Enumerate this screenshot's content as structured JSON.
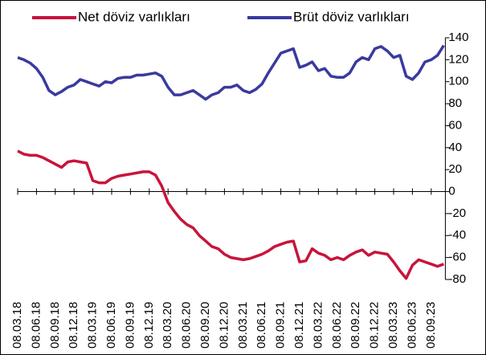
{
  "chart_data": {
    "type": "line",
    "categories": [
      "08.03.18",
      null,
      null,
      "08.06.18",
      null,
      null,
      "08.09.18",
      null,
      null,
      "08.12.18",
      null,
      null,
      "08.03.19",
      null,
      null,
      "08.06.19",
      null,
      null,
      "08.09.19",
      null,
      null,
      "08.12.19",
      null,
      null,
      "08.03.20",
      null,
      null,
      "08.06.20",
      null,
      null,
      "08.09.20",
      null,
      null,
      "08.12.20",
      null,
      null,
      "08.03.21",
      null,
      null,
      "08.06.21",
      null,
      null,
      "08.09.21",
      null,
      null,
      "08.12.21",
      null,
      null,
      "08.03.22",
      null,
      null,
      "08.06.22",
      null,
      null,
      "08.09.22",
      null,
      null,
      "08.12.22",
      null,
      null,
      "08.03.23",
      null,
      null,
      "08.06.23",
      null,
      null,
      "08.09.23",
      null,
      null
    ],
    "series": [
      {
        "name": "Net döviz varlıkları",
        "color": "#c8143c",
        "values": [
          37,
          34,
          33,
          33,
          31,
          28,
          25,
          22,
          27,
          28,
          27,
          26,
          10,
          8,
          8,
          12,
          14,
          15,
          16,
          17,
          18,
          18,
          15,
          5,
          -10,
          -18,
          -25,
          -30,
          -33,
          -40,
          -45,
          -50,
          -52,
          -57,
          -60,
          -61,
          -62,
          -61,
          -59,
          -57,
          -54,
          -50,
          -48,
          -46,
          -45,
          -64,
          -63,
          -52,
          -56,
          -58,
          -62,
          -60,
          -62,
          -58,
          -55,
          -53,
          -58,
          -55,
          -56,
          -57,
          -64,
          -72,
          -79,
          -67,
          -62,
          -64,
          -66,
          -68,
          -66
        ]
      },
      {
        "name": "Brüt döviz varlıkları",
        "color": "#3a3a9e",
        "values": [
          122,
          120,
          117,
          112,
          104,
          92,
          88,
          91,
          95,
          97,
          102,
          100,
          98,
          96,
          100,
          99,
          103,
          104,
          104,
          106,
          106,
          107,
          108,
          105,
          95,
          88,
          88,
          90,
          92,
          88,
          84,
          88,
          90,
          95,
          95,
          97,
          92,
          90,
          93,
          98,
          108,
          117,
          126,
          128,
          130,
          113,
          115,
          118,
          110,
          112,
          105,
          104,
          104,
          108,
          118,
          122,
          120,
          130,
          132,
          128,
          122,
          124,
          105,
          102,
          108,
          118,
          120,
          124,
          133
        ]
      }
    ],
    "ylim": [
      -80,
      140
    ],
    "yticks": [
      -80,
      -60,
      -40,
      -20,
      0,
      20,
      40,
      60,
      80,
      100,
      120,
      140
    ],
    "grid": false,
    "legend": "top"
  }
}
